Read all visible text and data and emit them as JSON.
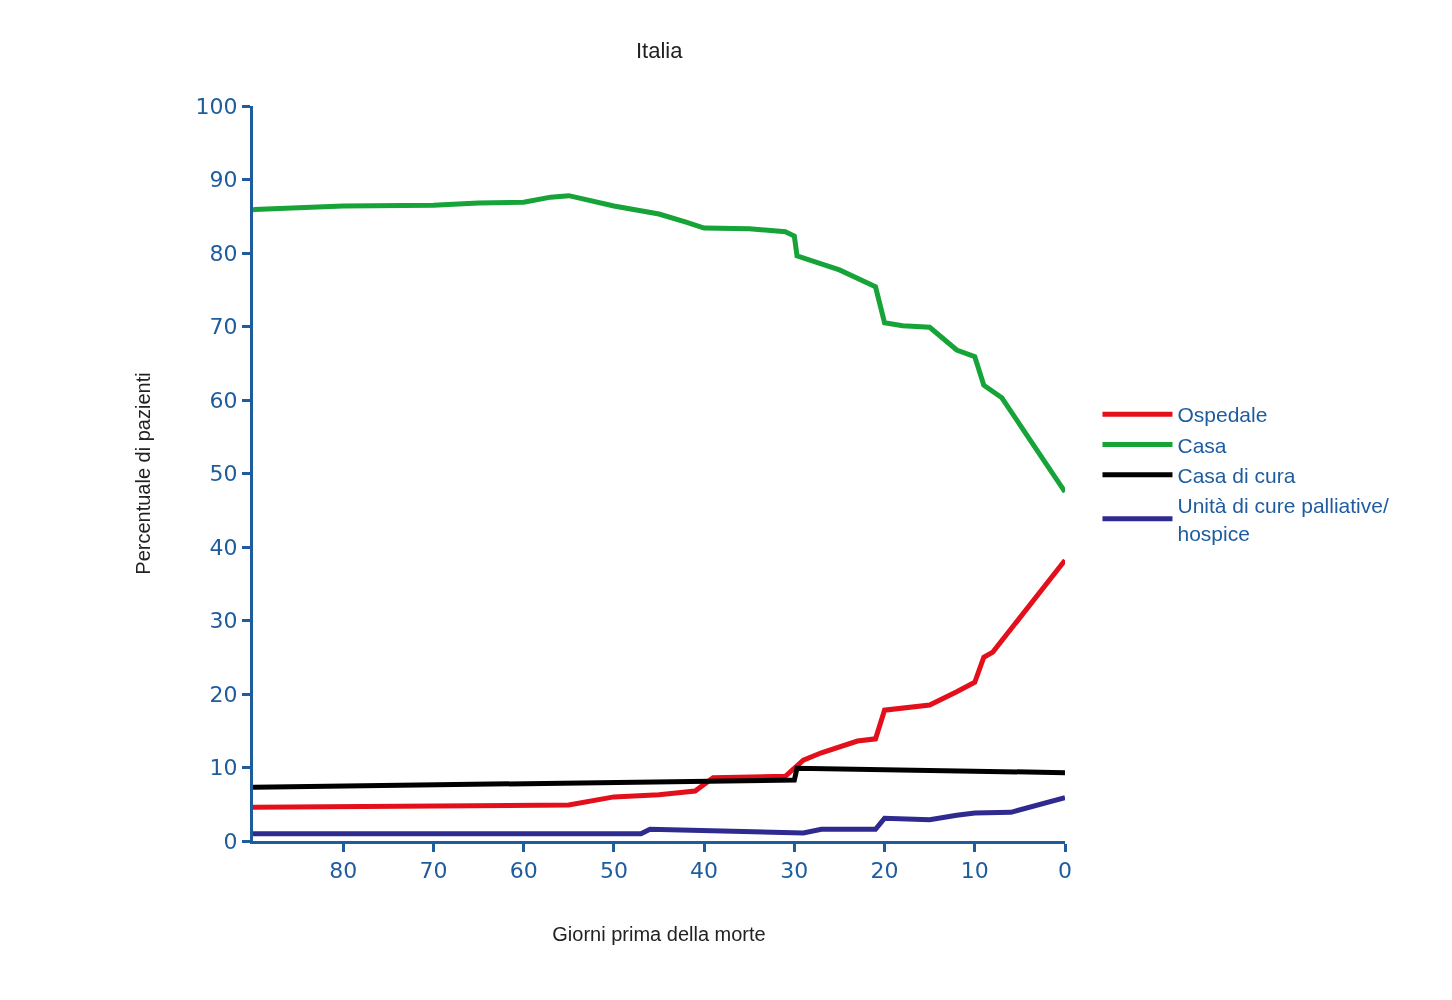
{
  "chart_data": {
    "type": "line",
    "title": "Italia",
    "xlabel": "Giorni prima della morte",
    "ylabel": "Percentuale di pazienti",
    "xlim": [
      90,
      0
    ],
    "xticks": [
      80,
      70,
      60,
      50,
      40,
      30,
      20,
      10,
      0
    ],
    "ylim": [
      0,
      100
    ],
    "yticks": [
      0,
      10,
      20,
      30,
      40,
      50,
      60,
      70,
      80,
      90,
      100
    ],
    "legend": "right",
    "marker": "none",
    "line_style": "solid",
    "series": [
      {
        "name": "Ospedale",
        "color": "#e3101b",
        "x": [
          90,
          55,
          50,
          45,
          41,
          39,
          31,
          29,
          27,
          23,
          21,
          20,
          15,
          12,
          10,
          9,
          8,
          0
        ],
        "values": [
          4.6,
          4.9,
          6.0,
          6.3,
          6.8,
          8.6,
          8.8,
          11.0,
          12.0,
          13.6,
          13.9,
          17.8,
          18.5,
          20.3,
          21.6,
          25.0,
          25.7,
          38.2
        ]
      },
      {
        "name": "Casa",
        "color": "#16a338",
        "x": [
          90,
          80,
          70,
          65,
          60,
          57,
          55,
          50,
          45,
          42,
          40,
          35,
          31,
          30,
          29.7,
          25,
          21,
          20,
          18,
          15,
          12,
          10,
          9,
          7,
          0
        ],
        "values": [
          85.9,
          86.4,
          86.5,
          86.8,
          86.9,
          87.6,
          87.8,
          86.4,
          85.3,
          84.2,
          83.4,
          83.3,
          82.9,
          82.3,
          79.6,
          77.7,
          75.4,
          70.5,
          70.1,
          69.9,
          66.8,
          65.9,
          62.0,
          60.3,
          47.5
        ]
      },
      {
        "name": "Casa di cura",
        "color": "#000000",
        "x": [
          90,
          30,
          29.7,
          0
        ],
        "values": [
          7.3,
          8.3,
          9.9,
          9.3
        ]
      },
      {
        "name": "Unità di cure palliative/\nhospice",
        "color": "#2e2a8f",
        "x": [
          90,
          47,
          46,
          29,
          27,
          21,
          20,
          15,
          12,
          10,
          6,
          0
        ],
        "values": [
          1.0,
          1.0,
          1.6,
          1.1,
          1.6,
          1.6,
          3.1,
          2.9,
          3.5,
          3.8,
          3.9,
          5.9
        ]
      }
    ]
  }
}
